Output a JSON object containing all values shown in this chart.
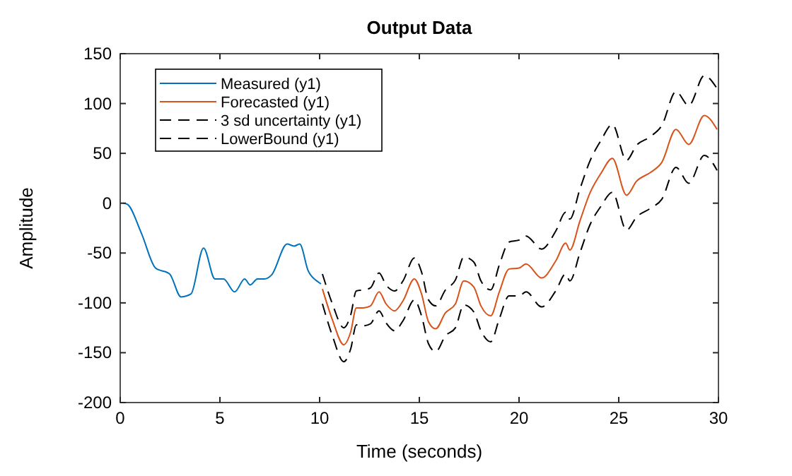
{
  "chart_data": {
    "type": "line",
    "title": "Output Data",
    "xlabel": "Time (seconds)",
    "ylabel": "Amplitude",
    "xlim": [
      0,
      30
    ],
    "xticks": [
      0,
      5,
      10,
      15,
      20,
      25,
      30
    ],
    "ylim": [
      -200,
      150
    ],
    "yticks": [
      -200,
      -150,
      -100,
      -50,
      0,
      50,
      100,
      150
    ],
    "grid": false,
    "legend": "top left",
    "series": [
      {
        "name": "Measured (y1)",
        "color": "#0072bd",
        "line_style": "solid",
        "x": [
          0.14,
          0.35,
          1.06,
          1.77,
          2.48,
          3.05,
          3.55,
          4.18,
          4.75,
          5.18,
          5.74,
          6.24,
          6.52,
          6.88,
          7.23,
          7.59,
          8.37,
          8.72,
          9.0,
          9.43,
          9.93,
          10.07
        ],
        "values": [
          0,
          -1,
          -30,
          -65,
          -71,
          -94,
          -91,
          -45,
          -76,
          -76,
          -89,
          -76,
          -82,
          -76,
          -76,
          -72,
          -41,
          -43,
          -41,
          -68,
          -79,
          -81
        ]
      },
      {
        "name": "Forecasted (y1)",
        "color": "#d95319",
        "line_style": "solid",
        "x": [
          10.14,
          10.64,
          11.21,
          11.56,
          11.84,
          12.2,
          12.55,
          12.98,
          13.33,
          13.76,
          14.18,
          14.75,
          15.11,
          15.46,
          15.82,
          16.31,
          16.81,
          17.23,
          17.73,
          18.09,
          18.58,
          19.01,
          19.5,
          20.0,
          20.35,
          21.13,
          21.84,
          22.34,
          22.55,
          23.05,
          23.55,
          24.11,
          24.68,
          25.39,
          25.89,
          26.6,
          27.16,
          27.87,
          28.51,
          29.29,
          29.93
        ],
        "values": [
          -86,
          -117,
          -142,
          -129,
          -105,
          -105,
          -103,
          -89,
          -101,
          -108,
          -98,
          -76,
          -91,
          -119,
          -126,
          -110,
          -101,
          -78,
          -84,
          -103,
          -113,
          -89,
          -66,
          -65,
          -61,
          -75,
          -58,
          -40,
          -47,
          -18,
          10,
          30,
          45,
          8,
          22,
          31,
          41,
          74,
          59,
          88,
          74
        ]
      },
      {
        "name": "3 sd uncertainty (y1)",
        "color": "#000000",
        "line_style": "dashed",
        "x": [
          10.14,
          10.64,
          11.21,
          11.56,
          11.84,
          12.2,
          12.55,
          12.98,
          13.33,
          13.76,
          14.18,
          14.75,
          15.11,
          15.46,
          15.82,
          16.31,
          16.81,
          17.23,
          17.73,
          18.09,
          18.58,
          19.01,
          19.5,
          20.0,
          20.35,
          21.13,
          21.84,
          22.34,
          22.55,
          23.05,
          23.55,
          24.11,
          24.68,
          25.39,
          25.89,
          26.6,
          27.16,
          27.87,
          28.51,
          29.29,
          29.93
        ],
        "values": [
          -71,
          -101,
          -125,
          -112,
          -88,
          -87,
          -85,
          -70,
          -82,
          -88,
          -78,
          -55,
          -69,
          -97,
          -103,
          -87,
          -77,
          -54,
          -59,
          -78,
          -87,
          -62,
          -39,
          -37,
          -33,
          -46,
          -28,
          -9,
          -16,
          14,
          42,
          63,
          79,
          43,
          58,
          67,
          78,
          112,
          98,
          128,
          115
        ]
      },
      {
        "name": "LowerBound (y1)",
        "color": "#000000",
        "line_style": "dashed",
        "x": [
          10.14,
          10.64,
          11.21,
          11.56,
          11.84,
          12.2,
          12.55,
          12.98,
          13.33,
          13.76,
          14.18,
          14.75,
          15.11,
          15.46,
          15.82,
          16.31,
          16.81,
          17.23,
          17.73,
          18.09,
          18.58,
          19.01,
          19.5,
          20.0,
          20.35,
          21.13,
          21.84,
          22.34,
          22.55,
          23.05,
          23.55,
          24.11,
          24.68,
          25.39,
          25.89,
          26.6,
          27.16,
          27.87,
          28.51,
          29.29,
          29.93
        ],
        "values": [
          -101,
          -133,
          -159,
          -146,
          -122,
          -123,
          -121,
          -108,
          -120,
          -128,
          -118,
          -97,
          -113,
          -141,
          -149,
          -133,
          -125,
          -102,
          -109,
          -128,
          -139,
          -116,
          -93,
          -93,
          -89,
          -104,
          -88,
          -71,
          -78,
          -50,
          -22,
          -3,
          11,
          -27,
          -14,
          -5,
          4,
          36,
          20,
          48,
          33
        ]
      }
    ]
  }
}
